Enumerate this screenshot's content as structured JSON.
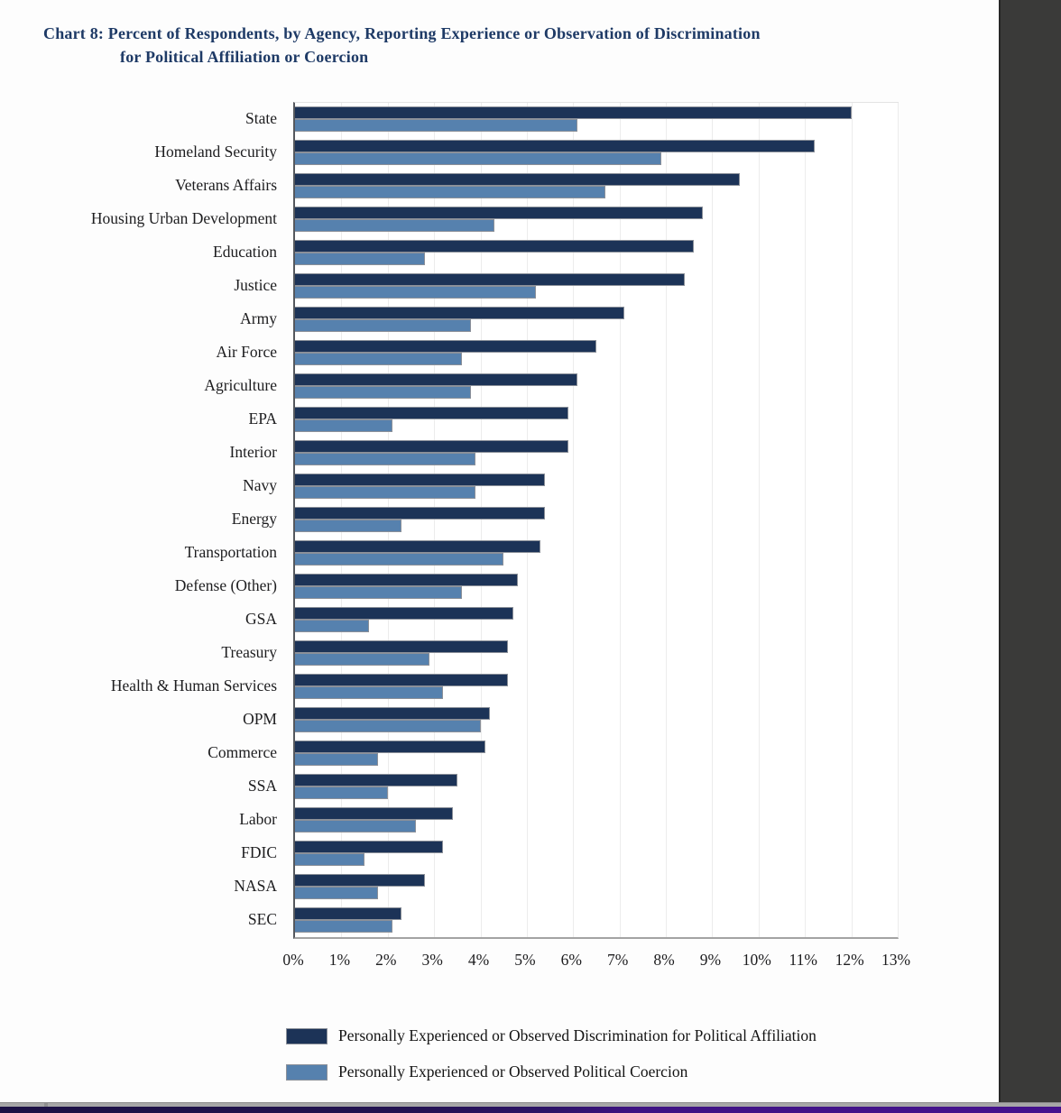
{
  "title": {
    "line1": "Chart 8: Percent of Respondents, by Agency, Reporting Experience or Observation of Discrimination",
    "line2": "for Political Affiliation or Coercion"
  },
  "colors": {
    "title_navy": "#1e3a66",
    "bar_dark_navy": "#1c3357",
    "bar_steel_blue": "#5681ae"
  },
  "chart_data": {
    "type": "bar",
    "orientation": "horizontal",
    "title": "Chart 8: Percent of Respondents, by Agency, Reporting Experience or Observation of Discrimination for Political Affiliation or Coercion",
    "xlabel": "",
    "ylabel": "",
    "xlim": [
      0,
      13
    ],
    "grid": true,
    "legend_position": "bottom",
    "x_ticks": [
      "0%",
      "1%",
      "2%",
      "3%",
      "4%",
      "5%",
      "6%",
      "7%",
      "8%",
      "9%",
      "10%",
      "11%",
      "12%",
      "13%"
    ],
    "categories": [
      "State",
      "Homeland Security",
      "Veterans Affairs",
      "Housing Urban Development",
      "Education",
      "Justice",
      "Army",
      "Air Force",
      "Agriculture",
      "EPA",
      "Interior",
      "Navy",
      "Energy",
      "Transportation",
      "Defense (Other)",
      "GSA",
      "Treasury",
      "Health & Human Services",
      "OPM",
      "Commerce",
      "SSA",
      "Labor",
      "FDIC",
      "NASA",
      "SEC"
    ],
    "series": [
      {
        "name": "Personally Experienced or Observed Discrimination for Political Affiliation",
        "color": "#1c3357",
        "values": [
          12.0,
          11.2,
          9.6,
          8.8,
          8.6,
          8.4,
          7.1,
          6.5,
          6.1,
          5.9,
          5.9,
          5.4,
          5.4,
          5.3,
          4.8,
          4.7,
          4.6,
          4.6,
          4.2,
          4.1,
          3.5,
          3.4,
          3.2,
          2.8,
          2.3
        ]
      },
      {
        "name": "Personally Experienced or Observed Political Coercion",
        "color": "#5681ae",
        "values": [
          6.1,
          7.9,
          6.7,
          4.3,
          2.8,
          5.2,
          3.8,
          3.6,
          3.8,
          2.1,
          3.9,
          3.9,
          2.3,
          4.5,
          3.6,
          1.6,
          2.9,
          3.2,
          4.0,
          1.8,
          2.0,
          2.6,
          1.5,
          1.8,
          2.1
        ]
      }
    ]
  }
}
